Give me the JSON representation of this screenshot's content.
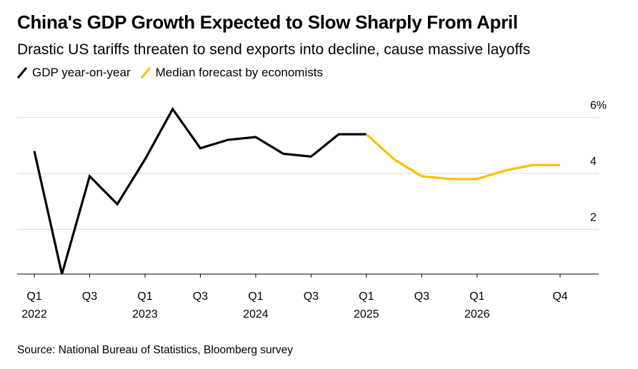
{
  "title": "China's GDP Growth Expected to Slow Sharply From April",
  "subtitle": "Drastic US tariffs threaten to send exports into decline, cause massive layoffs",
  "source": "Source: National Bureau of Statistics, Bloomberg survey",
  "colors": {
    "actual": "#000000",
    "forecast": "#f5c100",
    "grid": "#d9d9d9"
  },
  "chart_data": {
    "type": "line",
    "x": [
      "Q1 2022",
      "Q2 2022",
      "Q3 2022",
      "Q4 2022",
      "Q1 2023",
      "Q2 2023",
      "Q3 2023",
      "Q4 2023",
      "Q1 2024",
      "Q2 2024",
      "Q3 2024",
      "Q4 2024",
      "Q1 2025",
      "Q2 2025",
      "Q3 2025",
      "Q4 2025",
      "Q1 2026",
      "Q2 2026",
      "Q3 2026",
      "Q4 2026"
    ],
    "series": [
      {
        "name": "GDP year-on-year",
        "values": [
          4.8,
          0.4,
          3.9,
          2.9,
          4.5,
          6.3,
          4.9,
          5.2,
          5.3,
          4.7,
          4.6,
          5.4,
          5.4,
          null,
          null,
          null,
          null,
          null,
          null,
          null
        ]
      },
      {
        "name": "Median forecast by economists",
        "values": [
          null,
          null,
          null,
          null,
          null,
          null,
          null,
          null,
          null,
          null,
          null,
          null,
          5.4,
          4.5,
          3.9,
          3.8,
          3.8,
          4.1,
          4.3,
          4.3
        ]
      }
    ],
    "ylim": [
      0.4,
      6.5
    ],
    "yticks": [
      {
        "value": 6,
        "label": "6%"
      },
      {
        "value": 4,
        "label": "4"
      },
      {
        "value": 2,
        "label": "2"
      }
    ],
    "xticks": [
      {
        "index": 0,
        "q": "Q1",
        "year": "2022"
      },
      {
        "index": 2,
        "q": "Q3",
        "year": ""
      },
      {
        "index": 4,
        "q": "Q1",
        "year": "2023"
      },
      {
        "index": 6,
        "q": "Q3",
        "year": ""
      },
      {
        "index": 8,
        "q": "Q1",
        "year": "2024"
      },
      {
        "index": 10,
        "q": "Q3",
        "year": ""
      },
      {
        "index": 12,
        "q": "Q1",
        "year": "2025"
      },
      {
        "index": 14,
        "q": "Q3",
        "year": ""
      },
      {
        "index": 16,
        "q": "Q1",
        "year": "2026"
      },
      {
        "index": 19,
        "q": "Q4",
        "year": ""
      }
    ],
    "grid": true,
    "legend": "top-left"
  }
}
